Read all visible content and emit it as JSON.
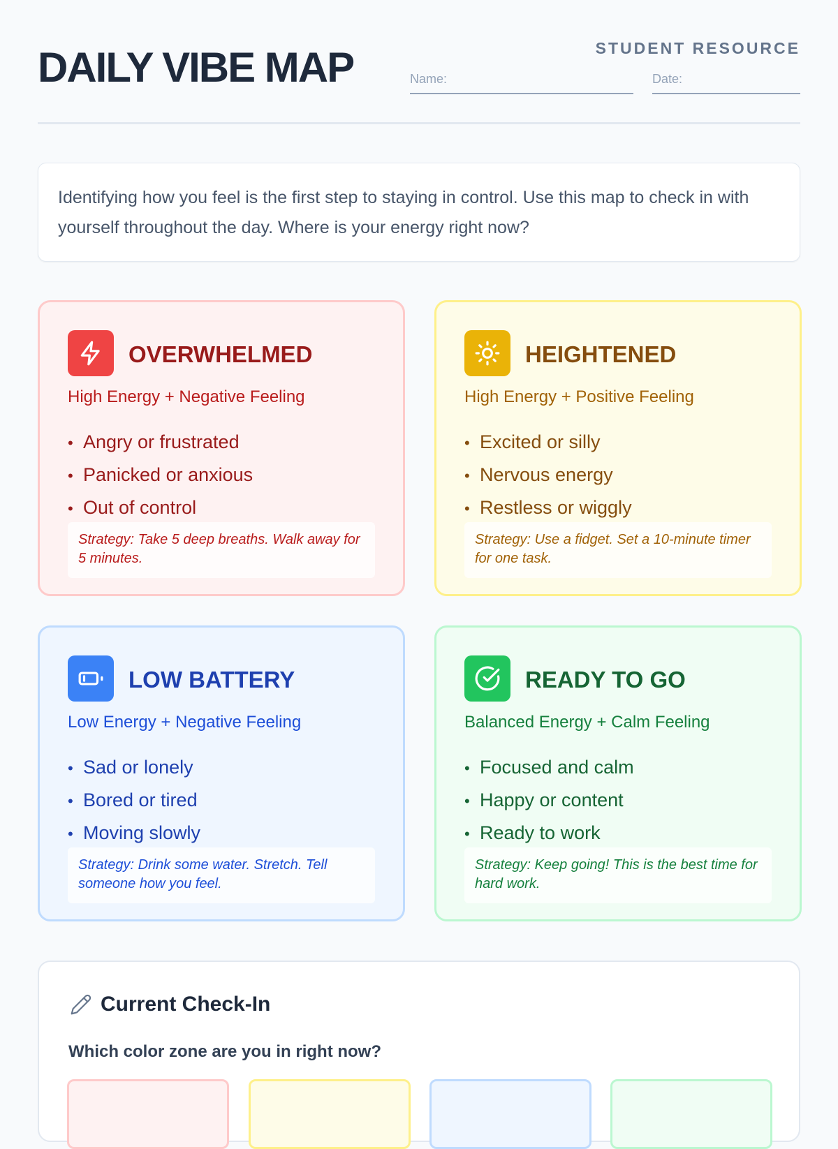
{
  "header": {
    "title": "DAILY VIBE MAP",
    "resource": "STUDENT RESOURCE",
    "name_label": "Name:",
    "date_label": "Date:"
  },
  "intro": "Identifying how you feel is the first step to staying in control. Use this map to check in with yourself throughout the day. Where is your energy right now?",
  "zones": [
    {
      "title": "OVERWHELMED",
      "icon": "lightning-icon",
      "subtitle": "High Energy + Negative Feeling",
      "items": [
        "Angry or frustrated",
        "Panicked or anxious",
        "Out of control"
      ],
      "strategy": "Strategy: Take 5 deep breaths. Walk away for 5 minutes.",
      "colors": {
        "bg": "#fef2f2",
        "border": "#fecaca",
        "accent": "#ef4444",
        "title": "#991b1b",
        "sub": "#b91c1c"
      }
    },
    {
      "title": "HEIGHTENED",
      "icon": "sun-icon",
      "subtitle": "High Energy + Positive Feeling",
      "items": [
        "Excited or silly",
        "Nervous energy",
        "Restless or wiggly"
      ],
      "strategy": "Strategy: Use a fidget. Set a 10-minute timer for one task.",
      "colors": {
        "bg": "#fefce8",
        "border": "#fef08a",
        "accent": "#eab308",
        "title": "#854d0e",
        "sub": "#a16207"
      }
    },
    {
      "title": "LOW BATTERY",
      "icon": "battery-icon",
      "subtitle": "Low Energy + Negative Feeling",
      "items": [
        "Sad or lonely",
        "Bored or tired",
        "Moving slowly"
      ],
      "strategy": "Strategy: Drink some water. Stretch. Tell someone how you feel.",
      "colors": {
        "bg": "#eff6ff",
        "border": "#bfdbfe",
        "accent": "#3b82f6",
        "title": "#1e40af",
        "sub": "#1d4ed8"
      }
    },
    {
      "title": "READY TO GO",
      "icon": "check-circle-icon",
      "subtitle": "Balanced Energy + Calm Feeling",
      "items": [
        "Focused and calm",
        "Happy or content",
        "Ready to work"
      ],
      "strategy": "Strategy: Keep going! This is the best time for hard work.",
      "colors": {
        "bg": "#f0fdf4",
        "border": "#bbf7d0",
        "accent": "#22c55e",
        "title": "#166534",
        "sub": "#15803d"
      }
    }
  ],
  "checkin": {
    "title": "Current Check-In",
    "icon": "pencil-icon",
    "question": "Which color zone are you in right now?"
  }
}
